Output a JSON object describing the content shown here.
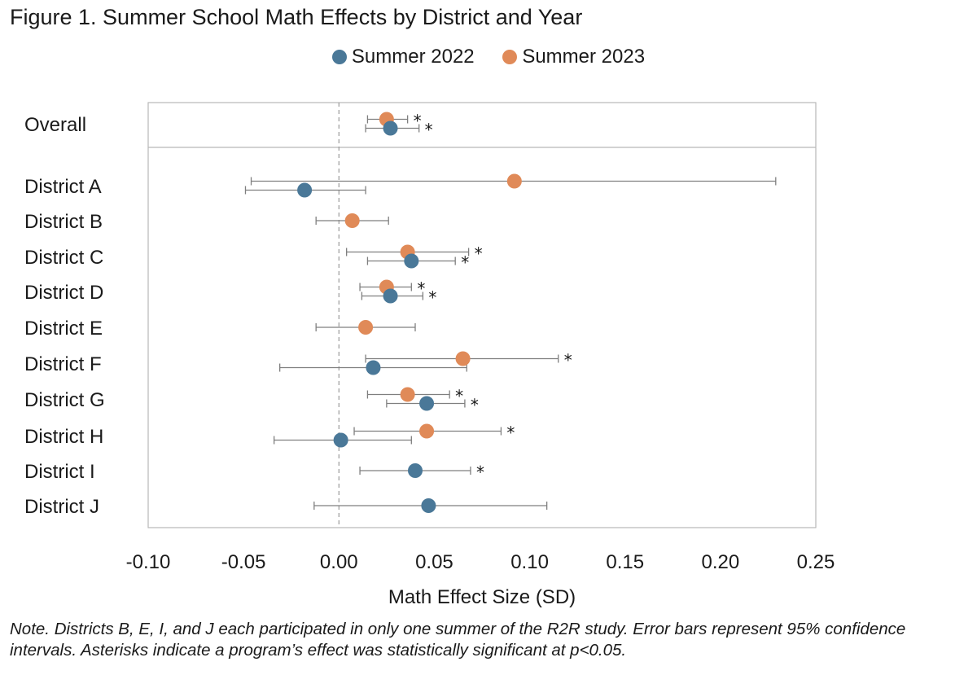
{
  "chart_data": {
    "type": "forest",
    "title": "Figure 1. Summer School Math Effects by District and Year",
    "xlabel": "Math Effect Size (SD)",
    "xlim": [
      -0.1,
      0.25
    ],
    "xticks": [
      "-0.10",
      "-0.05",
      "0.00",
      "0.05",
      "0.10",
      "0.15",
      "0.20",
      "0.25"
    ],
    "xtick_values": [
      -0.1,
      -0.05,
      0.0,
      0.05,
      0.1,
      0.15,
      0.2,
      0.25
    ],
    "categories": [
      "Overall",
      "District A",
      "District B",
      "District C",
      "District D",
      "District E",
      "District F",
      "District G",
      "District H",
      "District I",
      "District J"
    ],
    "series": [
      {
        "name": "Summer 2022",
        "color": "#4a7898",
        "points": [
          {
            "category": "Overall",
            "value": 0.027,
            "ci": [
              0.014,
              0.042
            ],
            "significant": true
          },
          {
            "category": "District A",
            "value": -0.018,
            "ci": [
              -0.049,
              0.014
            ],
            "significant": false
          },
          {
            "category": "District C",
            "value": 0.038,
            "ci": [
              0.015,
              0.061
            ],
            "significant": true
          },
          {
            "category": "District D",
            "value": 0.027,
            "ci": [
              0.012,
              0.044
            ],
            "significant": true
          },
          {
            "category": "District F",
            "value": 0.018,
            "ci": [
              -0.031,
              0.067
            ],
            "significant": false
          },
          {
            "category": "District G",
            "value": 0.046,
            "ci": [
              0.025,
              0.066
            ],
            "significant": true
          },
          {
            "category": "District H",
            "value": 0.001,
            "ci": [
              -0.034,
              0.038
            ],
            "significant": false
          },
          {
            "category": "District I",
            "value": 0.04,
            "ci": [
              0.011,
              0.069
            ],
            "significant": true
          },
          {
            "category": "District J",
            "value": 0.047,
            "ci": [
              -0.013,
              0.109
            ],
            "significant": false
          }
        ]
      },
      {
        "name": "Summer 2023",
        "color": "#e08a58",
        "points": [
          {
            "category": "Overall",
            "value": 0.025,
            "ci": [
              0.015,
              0.036
            ],
            "significant": true
          },
          {
            "category": "District A",
            "value": 0.092,
            "ci": [
              -0.046,
              0.229
            ],
            "significant": false
          },
          {
            "category": "District B",
            "value": 0.007,
            "ci": [
              -0.012,
              0.026
            ],
            "significant": false
          },
          {
            "category": "District C",
            "value": 0.036,
            "ci": [
              0.004,
              0.068
            ],
            "significant": true
          },
          {
            "category": "District D",
            "value": 0.025,
            "ci": [
              0.011,
              0.038
            ],
            "significant": true
          },
          {
            "category": "District E",
            "value": 0.014,
            "ci": [
              -0.012,
              0.04
            ],
            "significant": false
          },
          {
            "category": "District F",
            "value": 0.065,
            "ci": [
              0.014,
              0.115
            ],
            "significant": true
          },
          {
            "category": "District G",
            "value": 0.036,
            "ci": [
              0.015,
              0.058
            ],
            "significant": true
          },
          {
            "category": "District H",
            "value": 0.046,
            "ci": [
              0.008,
              0.085
            ],
            "significant": true
          }
        ]
      }
    ],
    "significance_marker": "*"
  },
  "legend": {
    "summer_2022": "Summer 2022",
    "summer_2023": "Summer 2023"
  },
  "note": "Note. Districts B, E, I, and J each participated in only one summer of the R2R study. Error bars represent 95% confidence intervals. Asterisks indicate a program’s effect was statistically significant at p<0.05."
}
